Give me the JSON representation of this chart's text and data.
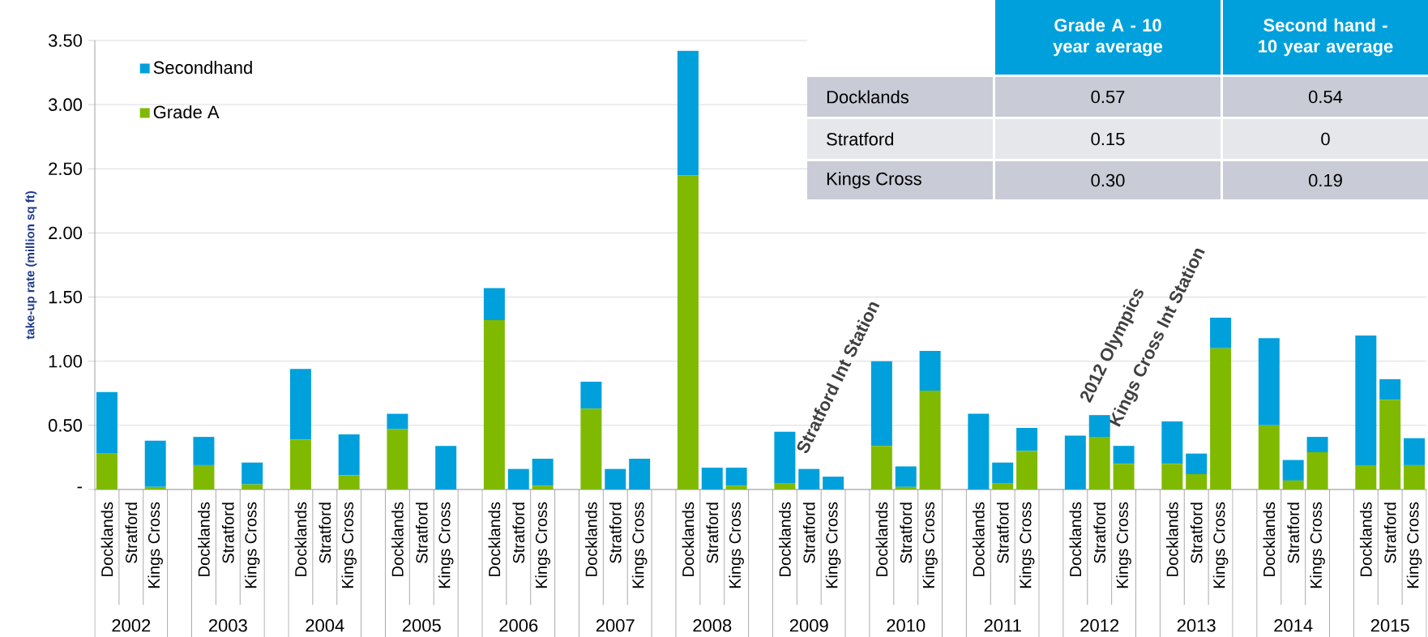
{
  "chart_data": {
    "type": "bar",
    "stacked": true,
    "ylabel": "take-up rate (million sq ft)",
    "categories": [
      "Docklands",
      "Stratford",
      "Kings Cross",
      null,
      "Docklands",
      "Stratford",
      "Kings Cross",
      null,
      "Docklands",
      "Stratford",
      "Kings Cross",
      null,
      "Docklands",
      "Stratford",
      "Kings Cross",
      null,
      "Docklands",
      "Stratford",
      "Kings Cross",
      null,
      "Docklands",
      "Stratford",
      "Kings Cross",
      null,
      "Docklands",
      "Stratford",
      "Kings Cross",
      null,
      "Docklands",
      "Stratford",
      "Kings Cross",
      null,
      "Docklands",
      "Stratford",
      "Kings Cross",
      null,
      "Docklands",
      "Stratford",
      "Kings Cross",
      null,
      "Docklands",
      "Stratford",
      "Kings Cross",
      null,
      "Docklands",
      "Stratford",
      "Kings Cross",
      null,
      "Docklands",
      "Stratford",
      "Kings Cross",
      null,
      "Docklands",
      "Stratford",
      "Kings Cross"
    ],
    "series": [
      {
        "name": "Grade A",
        "color": "#7fba00",
        "values": [
          0.28,
          0,
          0.02,
          null,
          0.19,
          0,
          0.04,
          null,
          0.39,
          0,
          0.11,
          null,
          0.47,
          0,
          0,
          null,
          1.32,
          0,
          0.03,
          null,
          0.63,
          0,
          0,
          null,
          2.45,
          0,
          0.03,
          null,
          0.05,
          0,
          0,
          null,
          0.34,
          0.02,
          0.77,
          null,
          0,
          0.05,
          0.3,
          null,
          0,
          0.41,
          0.2,
          null,
          0.2,
          0.12,
          1.1,
          null,
          0.5,
          0.07,
          0.29,
          null,
          0.19,
          0.7,
          0.19
        ]
      },
      {
        "name": "Secondhand",
        "color": "#00a0dc",
        "values": [
          0.48,
          0,
          0.36,
          null,
          0.22,
          0,
          0.17,
          null,
          0.55,
          0,
          0.32,
          null,
          0.12,
          0,
          0.34,
          null,
          0.25,
          0.16,
          0.21,
          null,
          0.21,
          0.16,
          0.24,
          null,
          0.97,
          0.17,
          0.14,
          null,
          0.4,
          0.16,
          0.1,
          null,
          0.66,
          0.16,
          0.31,
          null,
          0.59,
          0.16,
          0.18,
          null,
          0.42,
          0.17,
          0.14,
          null,
          0.33,
          0.16,
          0.24,
          null,
          0.68,
          0.16,
          0.12,
          null,
          1.01,
          0.16,
          0.21
        ]
      }
    ],
    "ylim": [
      0,
      3.5
    ],
    "yticks": [
      {
        "value": 0,
        "label": "-"
      },
      {
        "value": 0.5,
        "label": "0.50"
      },
      {
        "value": 1,
        "label": "1.00"
      },
      {
        "value": 1.5,
        "label": "1.50"
      },
      {
        "value": 2,
        "label": "2.00"
      },
      {
        "value": 2.5,
        "label": "2.50"
      },
      {
        "value": 3,
        "label": "3.00"
      },
      {
        "value": 3.5,
        "label": "3.50"
      }
    ],
    "grid": "y",
    "legend": "top left",
    "annotations": [
      "2002",
      "2003",
      "2004",
      "2005",
      "2006",
      "2007",
      "2008",
      "2009",
      "2010",
      "2011",
      "2012",
      "2013",
      "2014",
      "2015",
      "Grade A - 10 year average",
      "Second hand - 10 year average",
      "Docklands",
      "0.57",
      "0.54",
      "Stratford",
      "0.15",
      "0",
      "Kings Cross",
      "0.30",
      "0.19",
      "Stratford Int Station",
      "2012 Olympics",
      "Kings Cross Int Station"
    ]
  }
}
